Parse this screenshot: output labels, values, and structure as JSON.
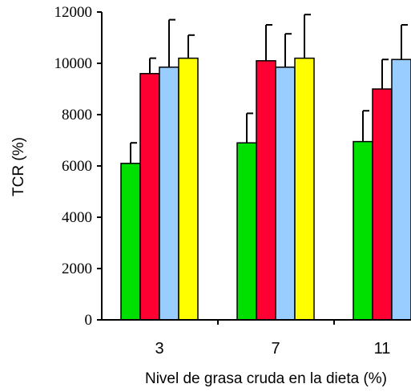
{
  "chart_data": {
    "type": "bar",
    "xlabel": "Nivel de grasa cruda en la dieta  (%)",
    "ylabel": "TCR (%)",
    "ylim": [
      0,
      12000
    ],
    "yticks": [
      0,
      2000,
      4000,
      6000,
      8000,
      10000,
      12000
    ],
    "grid": false,
    "legend": "none",
    "error_bars": "upper",
    "categories": [
      "3",
      "7",
      "11"
    ],
    "series": [
      {
        "color": "#00e000",
        "values": [
          6100,
          6900,
          6950
        ],
        "errors": [
          800,
          1150,
          1200
        ]
      },
      {
        "color": "#ff0033",
        "values": [
          9600,
          10100,
          9000
        ],
        "errors": [
          600,
          1400,
          1150
        ]
      },
      {
        "color": "#99ccff",
        "values": [
          9850,
          9850,
          10150
        ],
        "errors": [
          1850,
          1300,
          1350
        ]
      },
      {
        "color": "#ffff00",
        "values": [
          10200,
          10200,
          null
        ],
        "errors": [
          900,
          1700,
          null
        ]
      }
    ]
  }
}
